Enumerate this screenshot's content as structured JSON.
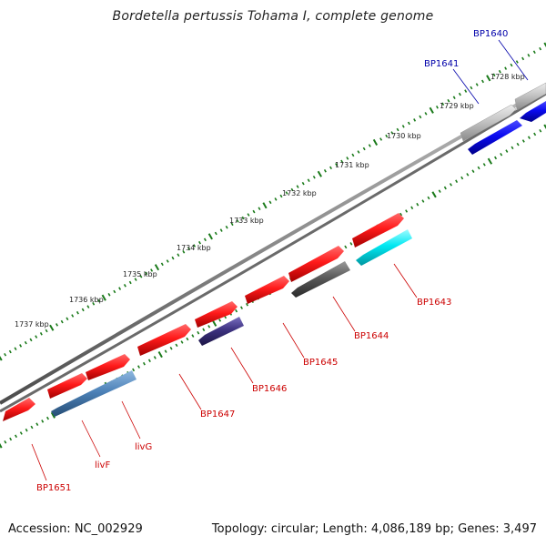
{
  "title": "Bordetella pertussis Tohama I, complete genome",
  "footer": {
    "accession": "Accession: NC_002929",
    "summary": "Topology: circular; Length: 4,086,189 bp; Genes: 3,497"
  },
  "scale_labels": [
    "1728 kbp",
    "1729 kbp",
    "1730 kbp",
    "1731 kbp",
    "1732 kbp",
    "1733 kbp",
    "1734 kbp",
    "1735 kbp",
    "1736 kbp",
    "1737 kbp"
  ],
  "gene_labels": [
    {
      "id": "BP1640",
      "color": "#0000aa"
    },
    {
      "id": "BP1641",
      "color": "#0000aa"
    },
    {
      "id": "BP1643",
      "color": "#cc0000"
    },
    {
      "id": "BP1644",
      "color": "#cc0000"
    },
    {
      "id": "BP1645",
      "color": "#cc0000"
    },
    {
      "id": "BP1646",
      "color": "#cc0000"
    },
    {
      "id": "BP1647",
      "color": "#cc0000"
    },
    {
      "id": "livG",
      "color": "#cc0000"
    },
    {
      "id": "livF",
      "color": "#cc0000"
    },
    {
      "id": "BP1651",
      "color": "#cc0000"
    }
  ],
  "colors": {
    "backbone": "#8c8c8c",
    "tick_green": "#1a7a1a",
    "red_gene": "#ee1111",
    "blue_gene": "#0000ee",
    "silver_gene": "#bdbdbd",
    "cyan_gene": "#00e5ee",
    "dark_gray_gene": "#555555",
    "navy_gene": "#3a2f7a",
    "steel_blue_gene": "#4a7fb5"
  }
}
